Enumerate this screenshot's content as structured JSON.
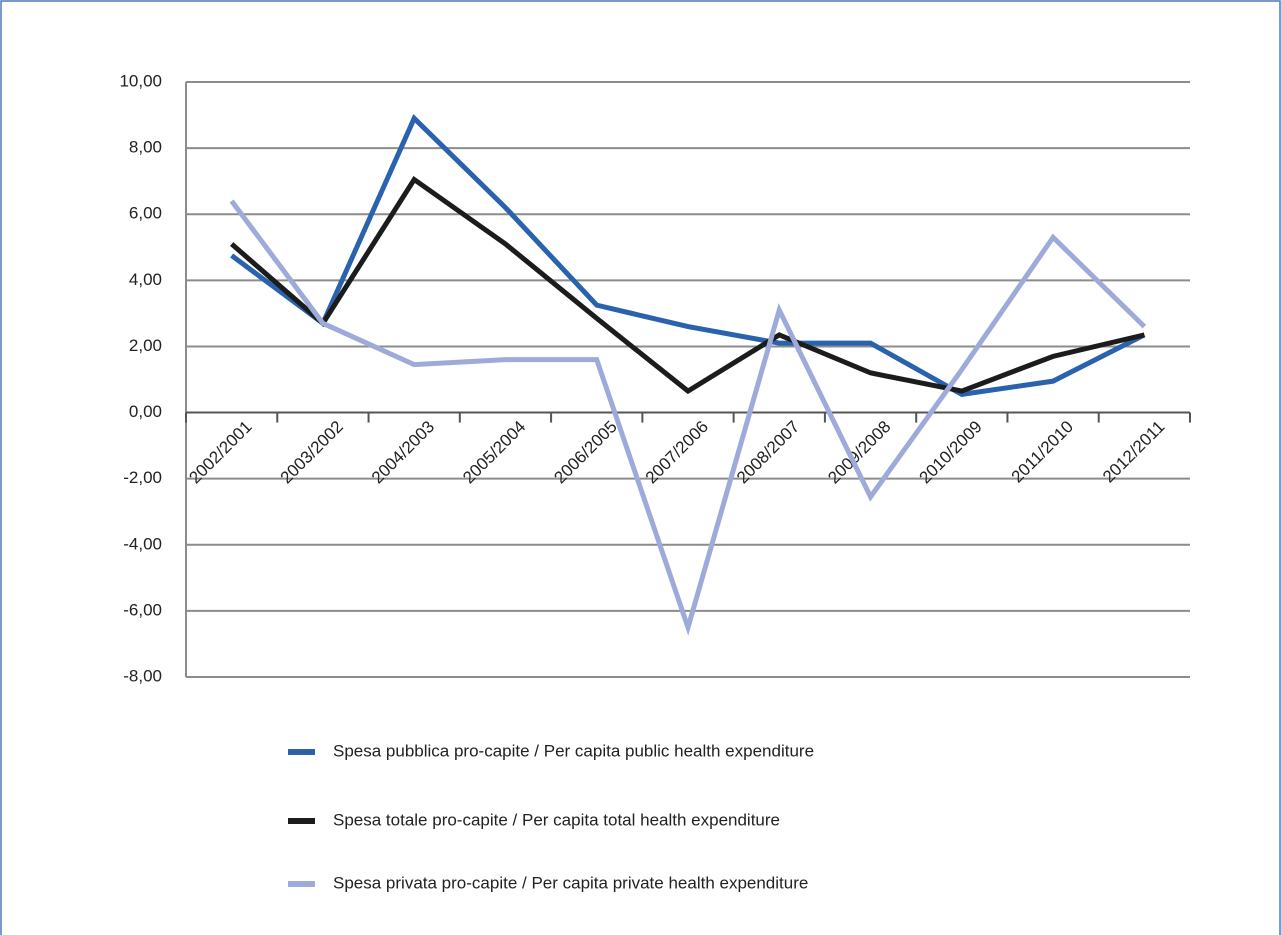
{
  "chart_data": {
    "type": "line",
    "categories": [
      "2002/2001",
      "2003/2002",
      "2004/2003",
      "2005/2004",
      "2006/2005",
      "2007/2006",
      "2008/2007",
      "2009/2008",
      "2010/2009",
      "2011/2010",
      "2012/2011"
    ],
    "series": [
      {
        "name": "Spesa pubblica pro-capite / Per capita public health expenditure",
        "color": "#2b62ad",
        "values": [
          4.75,
          2.7,
          8.9,
          6.2,
          3.25,
          2.6,
          2.1,
          2.1,
          0.55,
          0.95,
          2.35
        ]
      },
      {
        "name": "Spesa totale pro-capite / Per capita total health expenditure",
        "color": "#1c1c1c",
        "values": [
          5.1,
          2.7,
          7.05,
          5.1,
          2.85,
          0.65,
          2.35,
          1.2,
          0.65,
          1.7,
          2.35
        ]
      },
      {
        "name": "Spesa privata pro-capite / Per capita private health expenditure",
        "color": "#9eaad9",
        "values": [
          6.4,
          2.7,
          1.45,
          1.6,
          1.6,
          -6.5,
          3.1,
          -2.55,
          1.3,
          5.3,
          2.6
        ]
      }
    ],
    "ylim": [
      -8,
      10
    ],
    "yticks": [
      {
        "value": -8,
        "label": "-8,00"
      },
      {
        "value": -6,
        "label": "-6,00"
      },
      {
        "value": -4,
        "label": "-4,00"
      },
      {
        "value": -2,
        "label": "-2,00"
      },
      {
        "value": 0,
        "label": "0,00"
      },
      {
        "value": 2,
        "label": "2,00"
      },
      {
        "value": 4,
        "label": "4,00"
      },
      {
        "value": 6,
        "label": "6,00"
      },
      {
        "value": 8,
        "label": "8,00"
      },
      {
        "value": 10,
        "label": "10,00"
      }
    ],
    "grid": true,
    "legend": "bottom"
  }
}
